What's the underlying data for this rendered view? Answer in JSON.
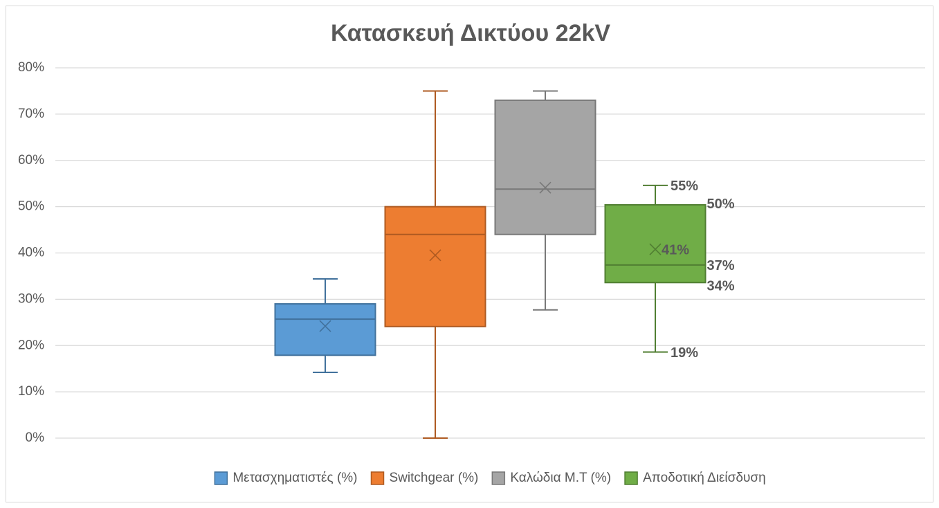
{
  "chart_data": {
    "type": "box",
    "title": "Κατασκευή Δικτύου 22kV",
    "ylim": [
      0,
      80
    ],
    "yticks": [
      {
        "value": 0,
        "label": "0%"
      },
      {
        "value": 10,
        "label": "10%"
      },
      {
        "value": 20,
        "label": "20%"
      },
      {
        "value": 30,
        "label": "30%"
      },
      {
        "value": 40,
        "label": "40%"
      },
      {
        "value": 50,
        "label": "50%"
      },
      {
        "value": 60,
        "label": "60%"
      },
      {
        "value": 70,
        "label": "70%"
      },
      {
        "value": 80,
        "label": "80%"
      }
    ],
    "grid": true,
    "legend": "bottom",
    "series": [
      {
        "name": "Μετασχηματιστές (%)",
        "color": "#5b9bd5",
        "edge_color": "#41719c",
        "min": 14.2,
        "q1": 17.9,
        "median": 25.7,
        "q3": 29.0,
        "max": 34.4,
        "mean": 24.2
      },
      {
        "name": "Switchgear (%)",
        "color": "#ed7d31",
        "edge_color": "#ae5a21",
        "min": 0,
        "q1": 24.1,
        "median": 44,
        "q3": 50,
        "max": 75,
        "mean": 39.5
      },
      {
        "name": "Καλώδια Μ.Τ (%)",
        "color": "#a5a5a5",
        "edge_color": "#787878",
        "min": 27.7,
        "q1": 44,
        "median": 53.8,
        "q3": 73,
        "max": 75,
        "mean": 54.1
      },
      {
        "name": "Αποδοτική Διείσδυση",
        "color": "#70ad47",
        "edge_color": "#507e32",
        "min": 18.6,
        "q1": 33.6,
        "median": 37.4,
        "q3": 50.4,
        "max": 54.6,
        "mean": 40.8,
        "value_labels": {
          "min": "19%",
          "q1": "34%",
          "median": "37%",
          "q3": "50%",
          "max": "55%",
          "mean": "41%"
        }
      }
    ]
  }
}
